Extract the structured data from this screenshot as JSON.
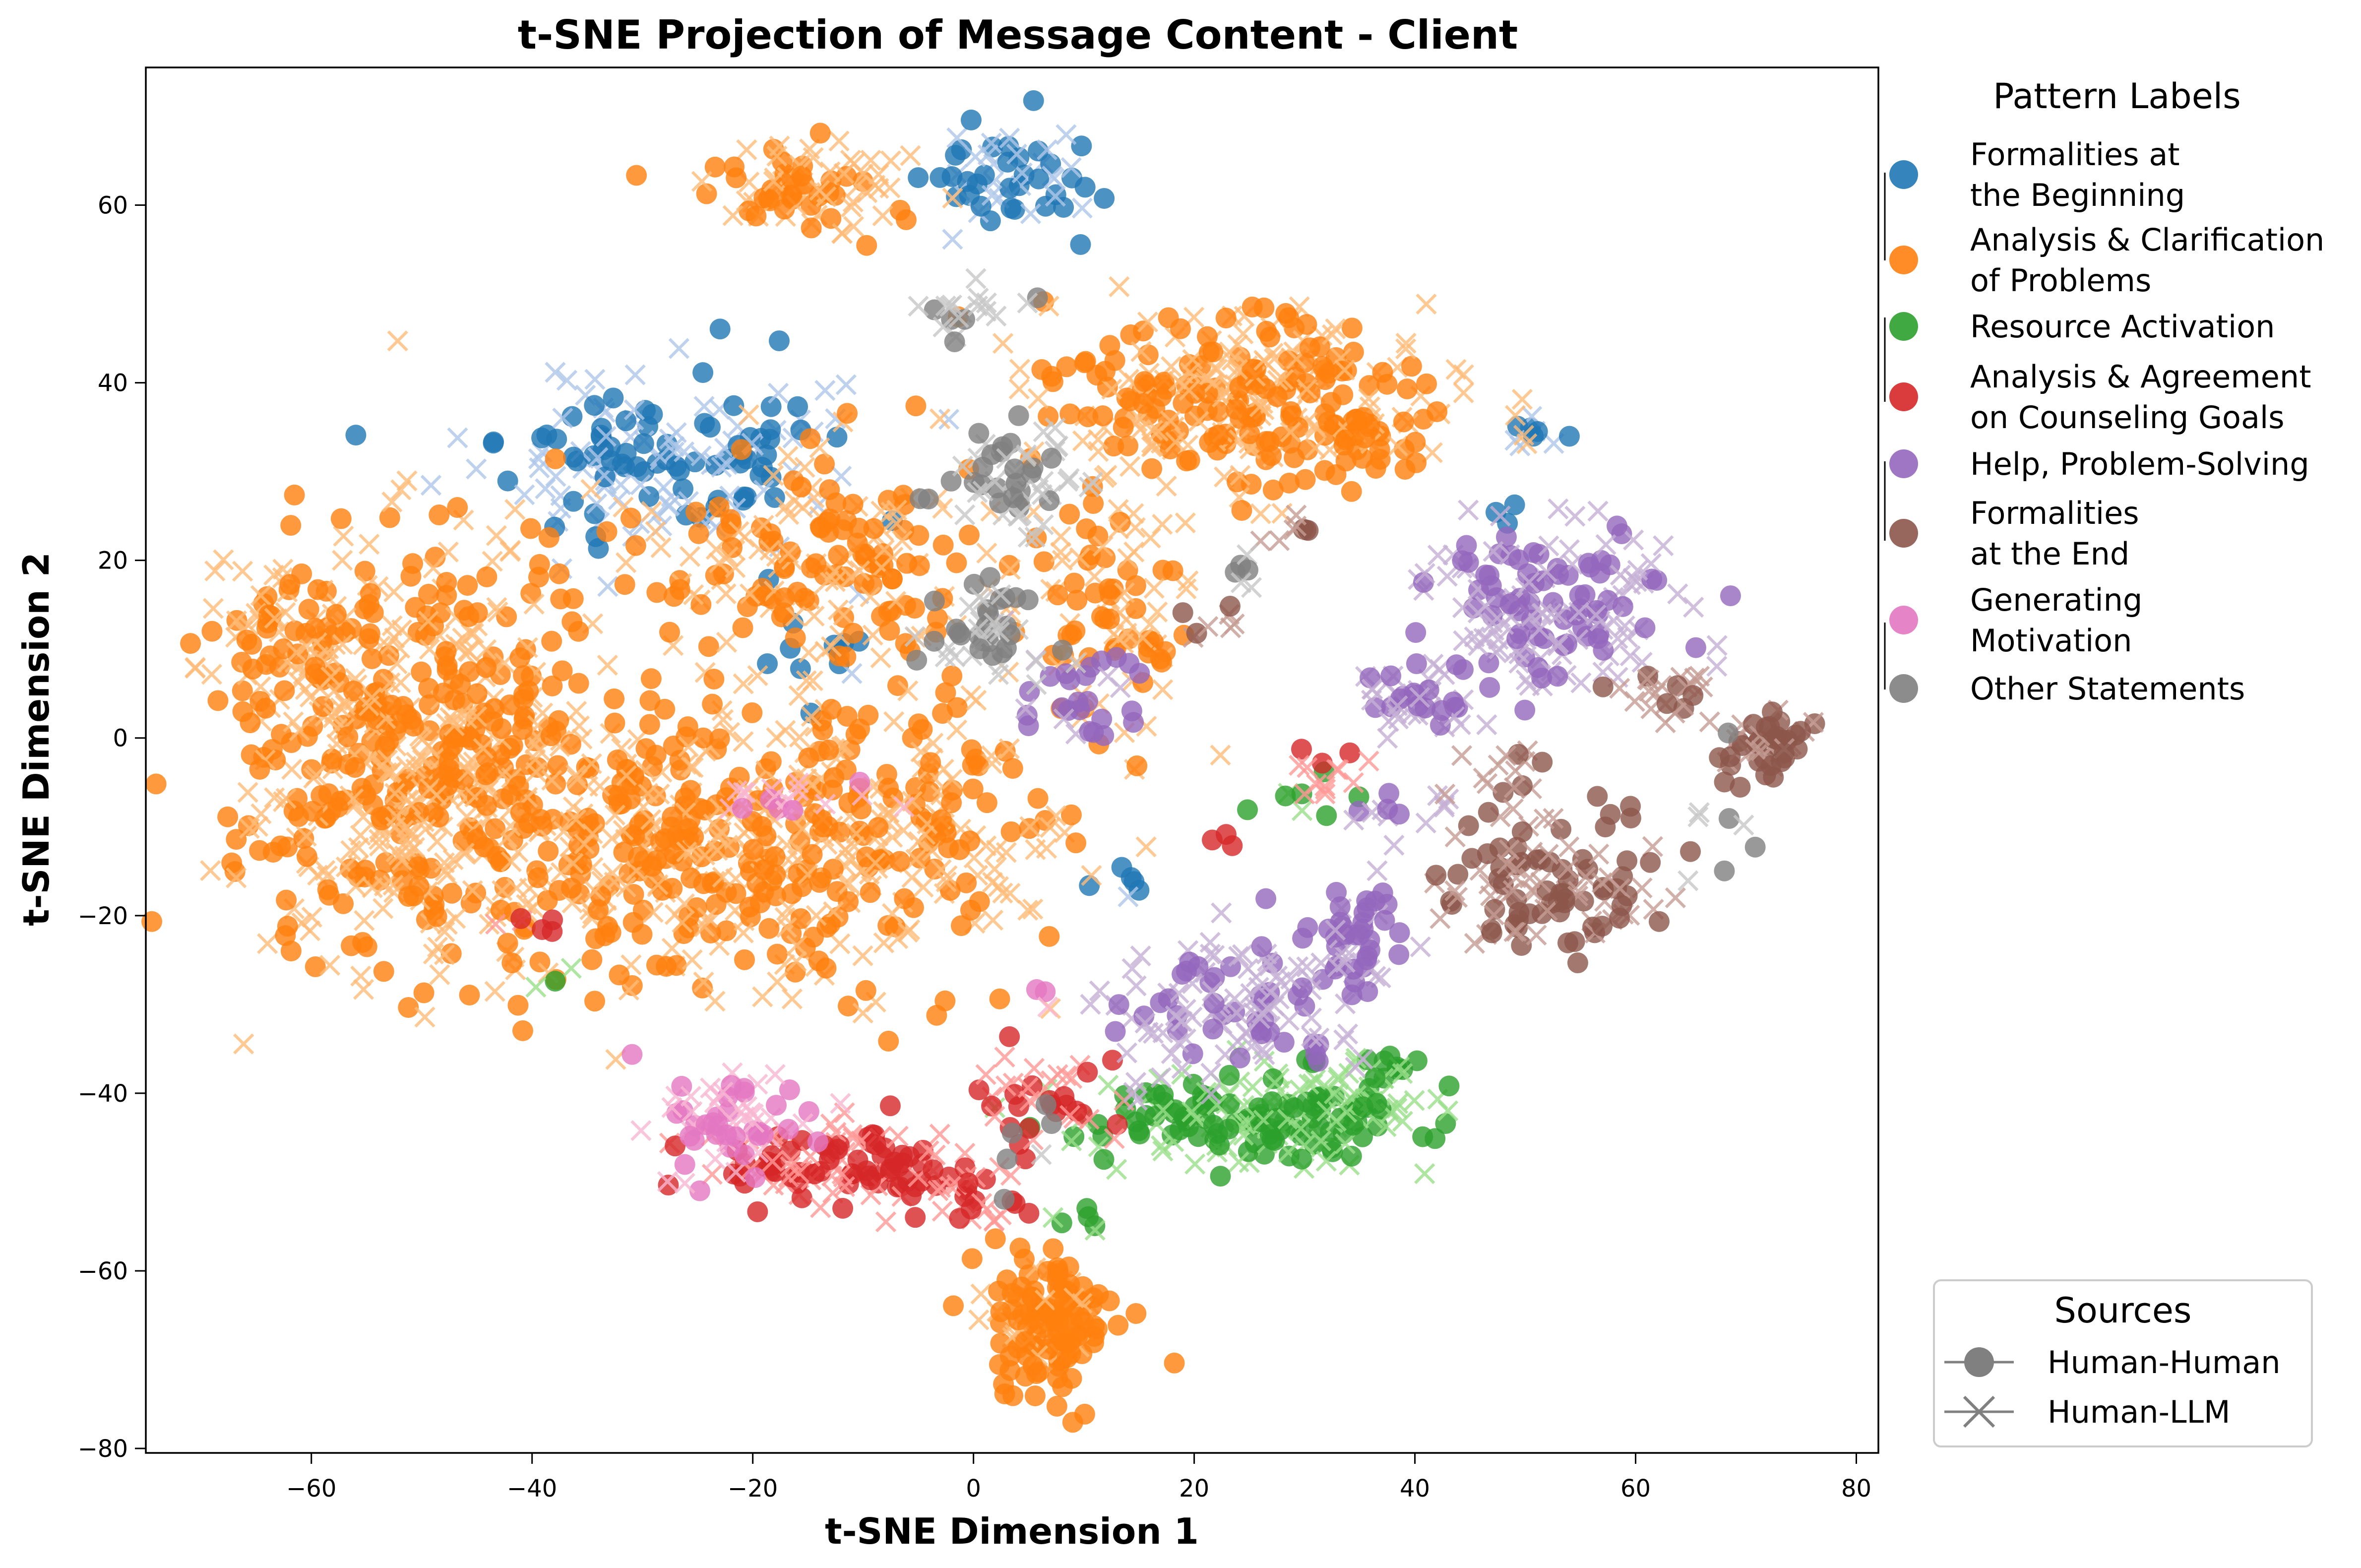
{
  "chart_data": {
    "type": "scatter",
    "title": "t-SNE Projection of Message Content - Client",
    "xlabel": "t-SNE Dimension 1",
    "ylabel": "t-SNE Dimension 2",
    "xlim": [
      -75,
      82
    ],
    "ylim": [
      -80.5,
      75.5
    ],
    "xticks": [
      -60,
      -40,
      -20,
      0,
      20,
      40,
      60,
      80
    ],
    "yticks": [
      -80,
      -60,
      -40,
      -20,
      0,
      20,
      40,
      60
    ],
    "xtick_labels": [
      "−60",
      "−40",
      "−20",
      "0",
      "20",
      "40",
      "60",
      "80"
    ],
    "ytick_labels": [
      "−80",
      "−60",
      "−40",
      "−20",
      "0",
      "20",
      "40",
      "60"
    ],
    "grid": false,
    "legend_pattern": {
      "title": "Pattern Labels",
      "placement": "outside-upper-right",
      "entries": [
        {
          "lines": [
            "Formalities at",
            "the Beginning"
          ],
          "color": "#1f77b4"
        },
        {
          "lines": [
            "Analysis & Clarification",
            "of Problems"
          ],
          "color": "#ff7f0e"
        },
        {
          "lines": [
            "Resource Activation"
          ],
          "color": "#2ca02c"
        },
        {
          "lines": [
            "Analysis & Agreement",
            "on Counseling Goals"
          ],
          "color": "#d62728"
        },
        {
          "lines": [
            "Help, Problem-Solving"
          ],
          "color": "#9467bd"
        },
        {
          "lines": [
            "Formalities",
            "at the End"
          ],
          "color": "#8c564b"
        },
        {
          "lines": [
            "Generating",
            "Motivation"
          ],
          "color": "#e377c2"
        },
        {
          "lines": [
            "Other Statements"
          ],
          "color": "#7f7f7f"
        }
      ]
    },
    "legend_sources": {
      "title": "Sources",
      "placement": "outside-lower-right",
      "entries": [
        {
          "label": "Human-Human",
          "marker": "circle"
        },
        {
          "label": "Human-LLM",
          "marker": "x"
        }
      ]
    },
    "series": [
      {
        "pattern": "Formalities at the Beginning",
        "color": "#1f77b4",
        "light_color": "#aec7e8",
        "clusters": [
          {
            "cx": -28,
            "cy": 32,
            "sx": 8,
            "sy": 5,
            "n": 170,
            "llm": 0.5
          },
          {
            "cx": 4,
            "cy": 63,
            "sx": 4,
            "sy": 3,
            "n": 60,
            "llm": 0.5
          },
          {
            "cx": -13,
            "cy": 10,
            "sx": 3,
            "sy": 3,
            "n": 12,
            "llm": 0.2
          },
          {
            "cx": 51,
            "cy": 34.5,
            "sx": 2,
            "sy": 1.2,
            "n": 10,
            "llm": 0.4
          },
          {
            "cx": 13,
            "cy": -17,
            "sx": 1.5,
            "sy": 1.5,
            "n": 6,
            "llm": 0.2
          },
          {
            "cx": 49,
            "cy": 25,
            "sx": 1,
            "sy": 1,
            "n": 3,
            "llm": 0
          }
        ]
      },
      {
        "pattern": "Analysis & Clarification of Problems",
        "color": "#ff7f0e",
        "light_color": "#ffbb78",
        "clusters": [
          {
            "cx": -50,
            "cy": -2,
            "sx": 9,
            "sy": 12,
            "n": 620,
            "llm": 0.5
          },
          {
            "cx": -28,
            "cy": -12,
            "sx": 9,
            "sy": 8,
            "n": 280,
            "llm": 0.5
          },
          {
            "cx": -10,
            "cy": -12,
            "sx": 10,
            "sy": 9,
            "n": 300,
            "llm": 0.55
          },
          {
            "cx": -13,
            "cy": 20,
            "sx": 8,
            "sy": 6,
            "n": 200,
            "llm": 0.55
          },
          {
            "cx": 25,
            "cy": 38,
            "sx": 9,
            "sy": 5,
            "n": 330,
            "llm": 0.5
          },
          {
            "cx": 13,
            "cy": 14,
            "sx": 4,
            "sy": 7,
            "n": 90,
            "llm": 0.45
          },
          {
            "cx": -15,
            "cy": 62,
            "sx": 5,
            "sy": 2.5,
            "n": 90,
            "llm": 0.6
          },
          {
            "cx": 7,
            "cy": -65,
            "sx": 3,
            "sy": 4,
            "n": 140,
            "llm": 0.2
          },
          {
            "cx": -62,
            "cy": 12,
            "sx": 3,
            "sy": 5,
            "n": 60,
            "llm": 0.6
          },
          {
            "cx": 36,
            "cy": 34,
            "sx": 2,
            "sy": 2,
            "n": 20,
            "llm": 0.3
          }
        ]
      },
      {
        "pattern": "Resource Activation",
        "color": "#2ca02c",
        "light_color": "#98df8a",
        "clusters": [
          {
            "cx": 26,
            "cy": -43,
            "sx": 7,
            "sy": 2.8,
            "n": 200,
            "llm": 0.5
          },
          {
            "cx": 35,
            "cy": -39,
            "sx": 3,
            "sy": 2,
            "n": 30,
            "llm": 0.5
          },
          {
            "cx": 30,
            "cy": -7,
            "sx": 2,
            "sy": 1.5,
            "n": 8,
            "llm": 0.5
          },
          {
            "cx": 10,
            "cy": -55,
            "sx": 2,
            "sy": 2,
            "n": 6,
            "llm": 0.3
          },
          {
            "cx": -37,
            "cy": -27,
            "sx": 1.5,
            "sy": 1.5,
            "n": 3,
            "llm": 0.3
          }
        ]
      },
      {
        "pattern": "Analysis & Agreement on Counseling Goals",
        "color": "#d62728",
        "light_color": "#ff9896",
        "clusters": [
          {
            "cx": -13,
            "cy": -48,
            "sx": 5,
            "sy": 2.5,
            "n": 120,
            "llm": 0.5
          },
          {
            "cx": -2,
            "cy": -51,
            "sx": 3,
            "sy": 2.5,
            "n": 40,
            "llm": 0.5
          },
          {
            "cx": 6,
            "cy": -40,
            "sx": 3,
            "sy": 3,
            "n": 40,
            "llm": 0.5
          },
          {
            "cx": 32,
            "cy": -4,
            "sx": 1.5,
            "sy": 1.5,
            "n": 14,
            "llm": 0.7
          },
          {
            "cx": -40,
            "cy": -21,
            "sx": 1.5,
            "sy": 1,
            "n": 6,
            "llm": 0.2
          },
          {
            "cx": 22,
            "cy": -11,
            "sx": 1,
            "sy": 1,
            "n": 3,
            "llm": 0.3
          }
        ]
      },
      {
        "pattern": "Help, Problem-Solving",
        "color": "#9467bd",
        "light_color": "#c5b0d5",
        "clusters": [
          {
            "cx": 52,
            "cy": 15,
            "sx": 6,
            "sy": 5,
            "n": 180,
            "llm": 0.55
          },
          {
            "cx": 24,
            "cy": -30,
            "sx": 6,
            "sy": 4,
            "n": 140,
            "llm": 0.6
          },
          {
            "cx": 35,
            "cy": -22,
            "sx": 2,
            "sy": 3,
            "n": 40,
            "llm": 0.5
          },
          {
            "cx": 40,
            "cy": 4,
            "sx": 3,
            "sy": 2,
            "n": 40,
            "llm": 0.55
          },
          {
            "cx": 10,
            "cy": 5,
            "sx": 4,
            "sy": 3,
            "n": 30,
            "llm": 0.3
          },
          {
            "cx": 38,
            "cy": -8,
            "sx": 2,
            "sy": 1.5,
            "n": 14,
            "llm": 0.7
          }
        ]
      },
      {
        "pattern": "Formalities at the End",
        "color": "#8c564b",
        "light_color": "#c49c94",
        "clusters": [
          {
            "cx": 52,
            "cy": -17,
            "sx": 5,
            "sy": 3.5,
            "n": 120,
            "llm": 0.5
          },
          {
            "cx": 72,
            "cy": -1,
            "sx": 2,
            "sy": 2,
            "n": 50,
            "llm": 0.3
          },
          {
            "cx": 63,
            "cy": 5,
            "sx": 2.5,
            "sy": 1.5,
            "n": 25,
            "llm": 0.6
          },
          {
            "cx": 48,
            "cy": -5,
            "sx": 2,
            "sy": 2,
            "n": 18,
            "llm": 0.5
          },
          {
            "cx": 29,
            "cy": 23,
            "sx": 2,
            "sy": 1,
            "n": 8,
            "llm": 0.4
          },
          {
            "cx": 22,
            "cy": 13,
            "sx": 2,
            "sy": 1,
            "n": 8,
            "llm": 0.5
          }
        ]
      },
      {
        "pattern": "Generating Motivation",
        "color": "#e377c2",
        "light_color": "#f7b6d2",
        "clusters": [
          {
            "cx": -22,
            "cy": -43,
            "sx": 3,
            "sy": 3,
            "n": 70,
            "llm": 0.6
          },
          {
            "cx": -16,
            "cy": -7,
            "sx": 3,
            "sy": 1.5,
            "n": 20,
            "llm": 0.7
          },
          {
            "cx": 7,
            "cy": -30,
            "sx": 1,
            "sy": 1,
            "n": 3,
            "llm": 0.3
          }
        ]
      },
      {
        "pattern": "Other Statements",
        "color": "#7f7f7f",
        "light_color": "#c7c7c7",
        "clusters": [
          {
            "cx": 4,
            "cy": 29,
            "sx": 3,
            "sy": 3,
            "n": 60,
            "llm": 0.5
          },
          {
            "cx": 1,
            "cy": 12,
            "sx": 2.5,
            "sy": 3,
            "n": 50,
            "llm": 0.5
          },
          {
            "cx": 0,
            "cy": 47,
            "sx": 2,
            "sy": 1.5,
            "n": 20,
            "llm": 0.6
          },
          {
            "cx": 24,
            "cy": 19,
            "sx": 1,
            "sy": 1.5,
            "n": 6,
            "llm": 0.7
          },
          {
            "cx": 66,
            "cy": -10,
            "sx": 3,
            "sy": 4,
            "n": 8,
            "llm": 0.5
          },
          {
            "cx": 5,
            "cy": -45,
            "sx": 2,
            "sy": 4,
            "n": 6,
            "llm": 0.3
          }
        ]
      }
    ]
  }
}
